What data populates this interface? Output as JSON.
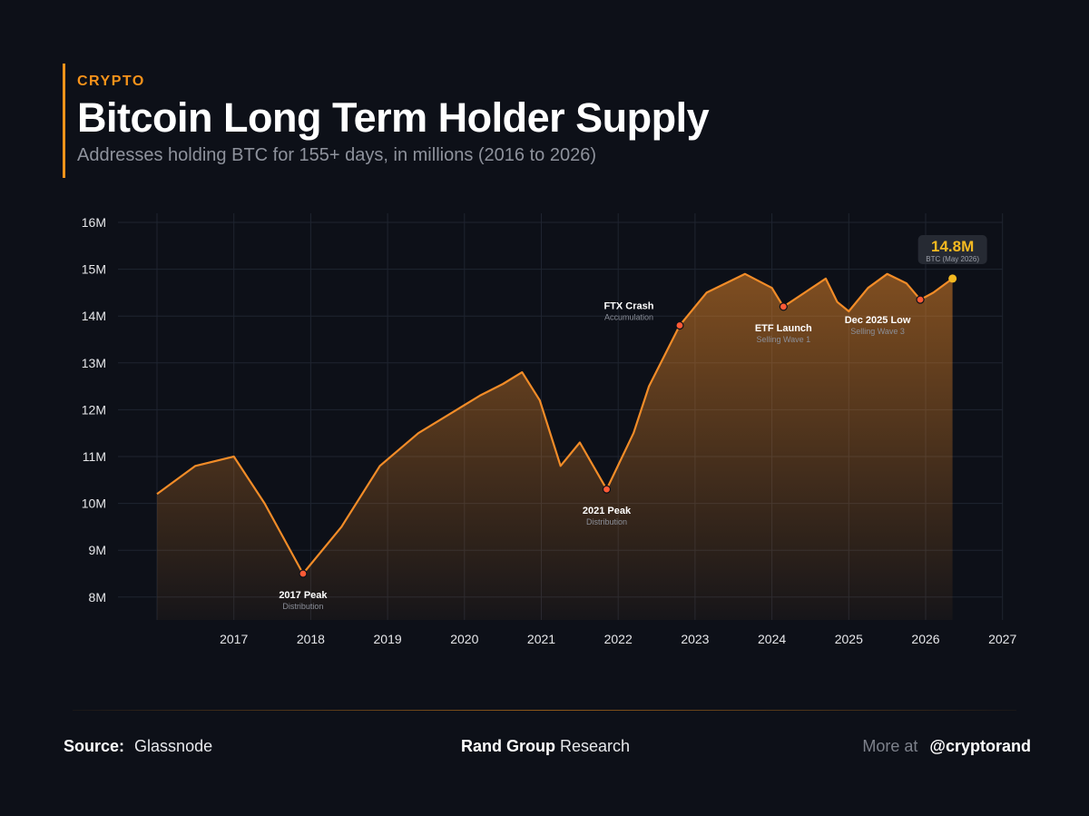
{
  "header": {
    "kicker": "CRYPTO",
    "title": "Bitcoin Long Term Holder Supply",
    "subtitle": "Addresses holding BTC for 155+ days, in millions (2016 to 2026)"
  },
  "chart_data": {
    "type": "area",
    "title": "Bitcoin Long Term Holder Supply",
    "xlabel": "",
    "ylabel": "",
    "xlim": [
      2016,
      2027
    ],
    "ylim": [
      7.5,
      16
    ],
    "x_ticks": [
      2017,
      2018,
      2019,
      2020,
      2021,
      2022,
      2023,
      2024,
      2025,
      2026,
      2027
    ],
    "y_ticks": [
      8,
      9,
      10,
      11,
      12,
      13,
      14,
      15,
      16
    ],
    "y_tick_labels": [
      "8M",
      "9M",
      "10M",
      "11M",
      "12M",
      "13M",
      "14M",
      "15M",
      "16M"
    ],
    "grid": true,
    "series": [
      {
        "x": [
          2016.0,
          2016.5,
          2017.0,
          2017.4,
          2017.9,
          2018.4,
          2018.9,
          2019.4,
          2019.9,
          2020.2,
          2020.5,
          2020.75,
          2020.98,
          2021.25,
          2021.5,
          2021.85,
          2022.2,
          2022.4,
          2022.8,
          2023.15,
          2023.65,
          2024.0,
          2024.15,
          2024.7,
          2024.85,
          2025.0,
          2025.25,
          2025.5,
          2025.75,
          2025.93,
          2026.1,
          2026.35
        ],
        "values": [
          10.2,
          10.8,
          11.0,
          10.0,
          8.5,
          9.5,
          10.8,
          11.5,
          12.0,
          12.3,
          12.55,
          12.8,
          12.2,
          10.8,
          11.3,
          10.3,
          11.5,
          12.5,
          13.8,
          14.5,
          14.9,
          14.6,
          14.2,
          14.8,
          14.3,
          14.1,
          14.6,
          14.9,
          14.7,
          14.35,
          14.5,
          14.8
        ]
      }
    ],
    "annotations": [
      {
        "x": 2017.9,
        "y": 8.5,
        "label": "2017 Peak",
        "sublabel": "Distribution",
        "position": "below"
      },
      {
        "x": 2021.85,
        "y": 10.3,
        "label": "2021 Peak",
        "sublabel": "Distribution",
        "position": "below"
      },
      {
        "x": 2022.8,
        "y": 13.8,
        "label": "FTX Crash",
        "sublabel": "Accumulation",
        "position": "above-left"
      },
      {
        "x": 2024.15,
        "y": 14.2,
        "label": "ETF Launch",
        "sublabel": "Selling Wave 1",
        "position": "below"
      },
      {
        "x": 2025.93,
        "y": 14.35,
        "label": "Dec 2025 Low",
        "sublabel": "Selling Wave 3",
        "position": "below-left"
      }
    ],
    "callout": {
      "x": 2026.35,
      "y": 14.8,
      "value": "14.8M",
      "sublabel": "BTC (May 2026)"
    }
  },
  "colors": {
    "background": "#0d1018",
    "accent": "#f7931a",
    "line": "#f28c28",
    "marker": "#ff5a36",
    "last_marker": "#f5b921",
    "grid": "#1f2430"
  },
  "footer": {
    "source_label": "Source:",
    "source_value": "Glassnode",
    "brand_bold": "Rand Group",
    "brand_rest": "Research",
    "more_at": "More at",
    "handle": "@cryptorand"
  }
}
